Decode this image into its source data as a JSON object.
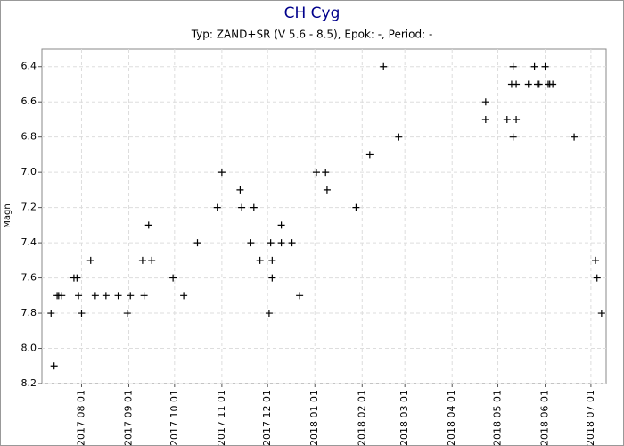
{
  "chart_data": {
    "type": "scatter",
    "title": "CH Cyg",
    "subtitle": "Typ: ZAND+SR (V 5.6 - 8.5), Epok: -, Period: -",
    "y_label": "Magn",
    "y_inverted": true,
    "grid": true,
    "color": "#000000",
    "xlim": [
      "2017-07-06",
      "2018-07-11"
    ],
    "xticks": [
      {
        "value": "2017-08-01",
        "label": "2017 08 01"
      },
      {
        "value": "2017-09-01",
        "label": "2017 09 01"
      },
      {
        "value": "2017-10-01",
        "label": "2017 10 01"
      },
      {
        "value": "2017-11-01",
        "label": "2017 11 01"
      },
      {
        "value": "2017-12-01",
        "label": "2017 12 01"
      },
      {
        "value": "2018-01-01",
        "label": "2018 01 01"
      },
      {
        "value": "2018-02-01",
        "label": "2018 02 01"
      },
      {
        "value": "2018-03-01",
        "label": "2018 03 01"
      },
      {
        "value": "2018-04-01",
        "label": "2018 04 01"
      },
      {
        "value": "2018-05-01",
        "label": "2018 05 01"
      },
      {
        "value": "2018-06-01",
        "label": "2018 06 01"
      },
      {
        "value": "2018-07-01",
        "label": "2018 07 01"
      }
    ],
    "ylim": [
      6.3,
      8.2
    ],
    "yticks": [
      6.4,
      6.6,
      6.8,
      {
        "value": 7,
        "label": "7.0"
      },
      7.2,
      7.4,
      7.6,
      7.8,
      {
        "value": 8,
        "label": "8.0"
      },
      8.2
    ],
    "x": [
      "2017-07-12",
      "2017-07-14",
      "2017-07-16",
      "2017-07-17",
      "2017-07-19",
      "2017-07-27",
      "2017-07-29",
      "2017-07-30",
      "2017-08-01",
      "2017-08-07",
      "2017-08-10",
      "2017-08-17",
      "2017-08-25",
      "2017-08-31",
      "2017-09-02",
      "2017-09-10",
      "2017-09-11",
      "2017-09-14",
      "2017-09-16",
      "2017-09-30",
      "2017-10-07",
      "2017-10-16",
      "2017-10-29",
      "2017-11-01",
      "2017-11-13",
      "2017-11-14",
      "2017-11-20",
      "2017-11-22",
      "2017-11-26",
      "2017-12-02",
      "2017-12-03",
      "2017-12-04",
      "2017-12-04",
      "2017-12-10",
      "2017-12-10",
      "2017-12-17",
      "2017-12-22",
      "2018-01-02",
      "2018-01-08",
      "2018-01-09",
      "2018-01-28",
      "2018-02-06",
      "2018-02-15",
      "2018-02-25",
      "2018-04-23",
      "2018-04-23",
      "2018-05-07",
      "2018-05-10",
      "2018-05-11",
      "2018-05-11",
      "2018-05-13",
      "2018-05-13",
      "2018-05-21",
      "2018-05-25",
      "2018-05-27",
      "2018-05-28",
      "2018-06-01",
      "2018-06-03",
      "2018-06-04",
      "2018-06-06",
      "2018-06-20",
      "2018-07-04",
      "2018-07-05",
      "2018-07-08"
    ],
    "values": [
      7.8,
      8.1,
      7.7,
      7.7,
      7.7,
      7.6,
      7.6,
      7.7,
      7.8,
      7.5,
      7.7,
      7.7,
      7.7,
      7.8,
      7.7,
      7.5,
      7.7,
      7.3,
      7.5,
      7.6,
      7.7,
      7.4,
      7.2,
      7.0,
      7.1,
      7.2,
      7.4,
      7.2,
      7.5,
      7.8,
      7.4,
      7.5,
      7.6,
      7.3,
      7.4,
      7.4,
      7.7,
      7.0,
      7.0,
      7.1,
      7.2,
      6.9,
      6.4,
      6.8,
      6.6,
      6.7,
      6.7,
      6.5,
      6.4,
      6.8,
      6.5,
      6.7,
      6.5,
      6.4,
      6.5,
      6.5,
      6.4,
      6.5,
      6.5,
      6.5,
      6.8,
      7.5,
      7.6,
      7.8
    ]
  }
}
